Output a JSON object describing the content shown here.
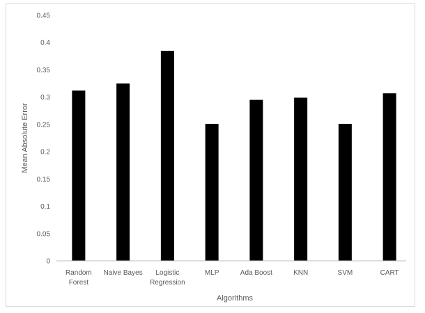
{
  "chart_data": {
    "type": "bar",
    "title": "",
    "xlabel": "Algorithms",
    "ylabel": "Mean Absolute Error",
    "categories": [
      [
        "Random",
        "Forest"
      ],
      [
        "Naive Bayes"
      ],
      [
        "Logistic",
        "Regression"
      ],
      [
        "MLP"
      ],
      [
        "Ada Boost"
      ],
      [
        "KNN"
      ],
      [
        "SVM"
      ],
      [
        "CART"
      ]
    ],
    "values": [
      0.312,
      0.325,
      0.385,
      0.251,
      0.295,
      0.299,
      0.251,
      0.307
    ],
    "ylim": [
      0,
      0.45
    ],
    "yticks": [
      "0",
      "0.05",
      "0.1",
      "0.15",
      "0.2",
      "0.25",
      "0.3",
      "0.35",
      "0.4",
      "0.45"
    ],
    "grid": false,
    "legend": "none",
    "bar_color": "#000000",
    "axis_color": "#bfbfbf"
  }
}
